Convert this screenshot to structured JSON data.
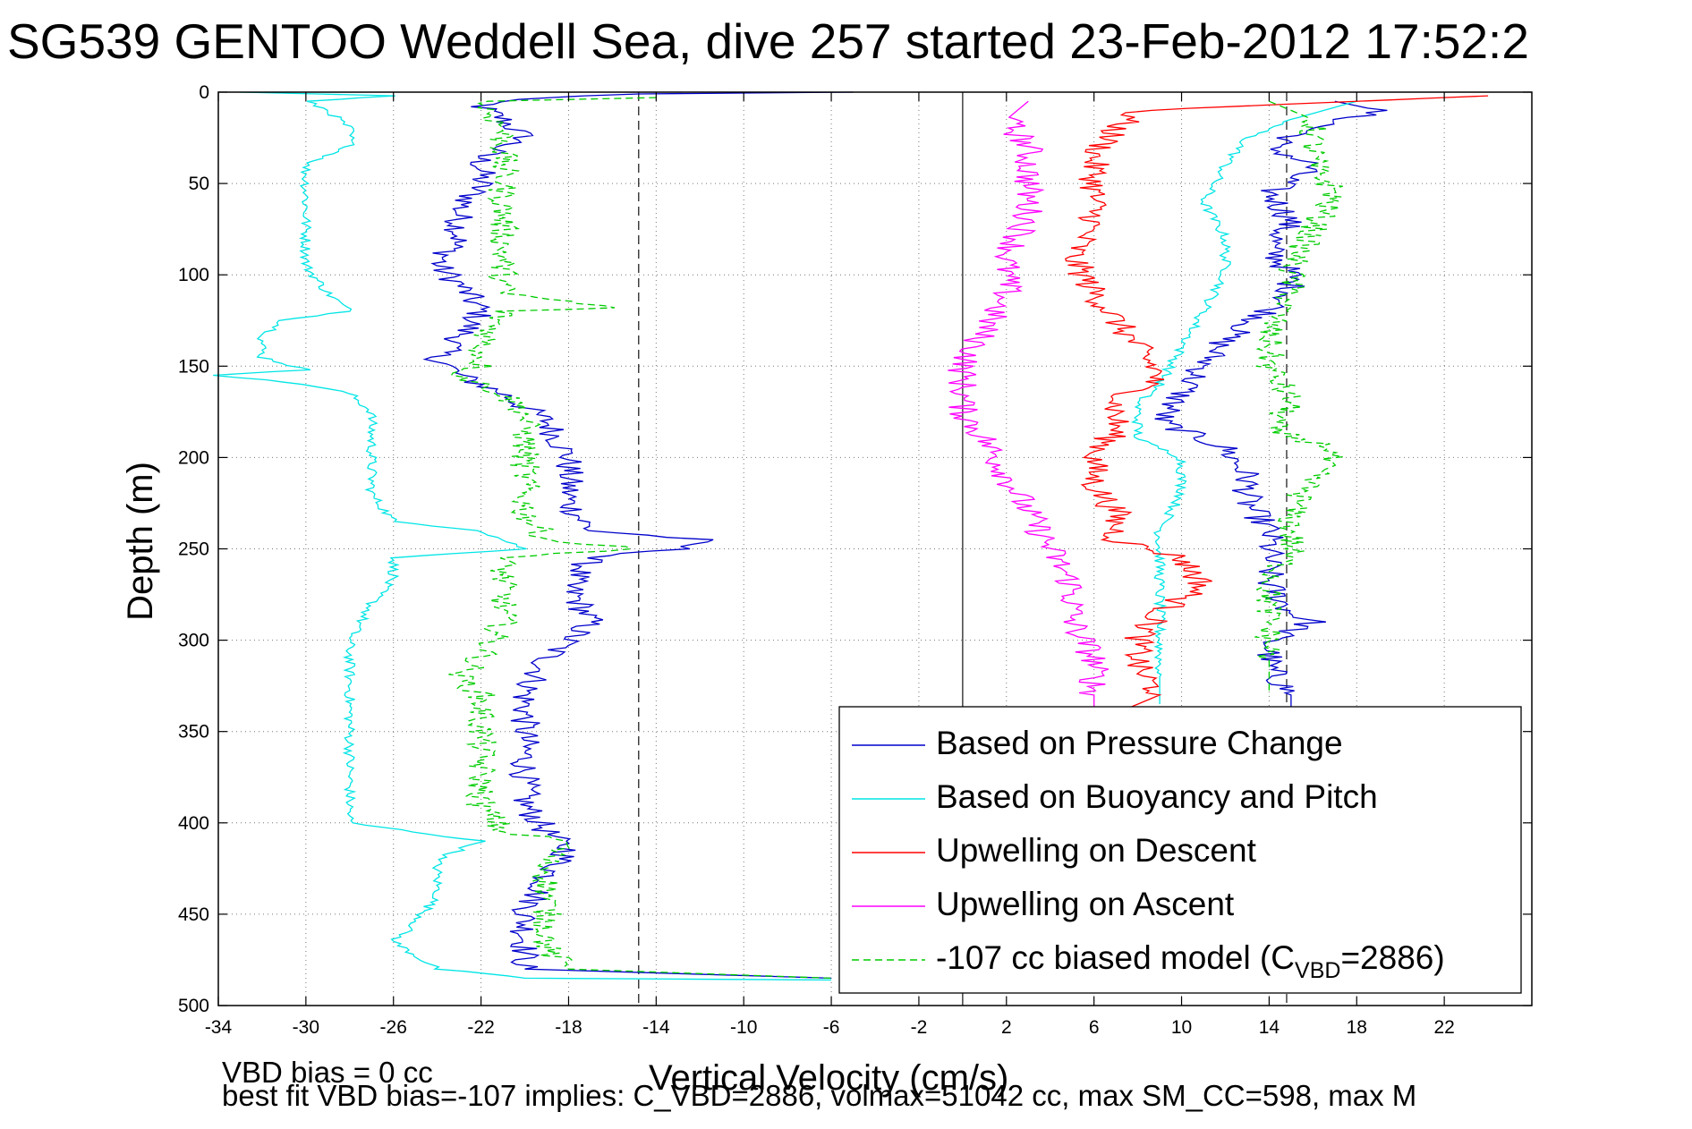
{
  "title": "SG539 GENTOO Weddell Sea, dive 257 started 23-Feb-2012 17:52:2",
  "footer": {
    "line1": "VBD bias = 0 cc",
    "line2": "best fit VBD bias=-107 implies: C_VBD=2886, volmax=51042 cc, max SM_CC=598, max M"
  },
  "chart_data": {
    "type": "line",
    "title": "SG539 GENTOO Weddell Sea, dive 257 started 23-Feb-2012 17:52:2",
    "xlabel": "Vertical Velocity (cm/s)",
    "ylabel": "Depth (m)",
    "xlim": [
      -34,
      26
    ],
    "ylim": [
      500,
      0
    ],
    "y_reversed": true,
    "grid": true,
    "grid_style": "dotted",
    "xticks": [
      -34,
      -30,
      -26,
      -22,
      -18,
      -14,
      -10,
      -6,
      -2,
      2,
      6,
      10,
      14,
      18,
      22
    ],
    "yticks": [
      0,
      50,
      100,
      150,
      200,
      250,
      300,
      350,
      400,
      450,
      500
    ],
    "vertical_lines": [
      {
        "x": -14.8,
        "style": "dashed"
      },
      {
        "x": 0,
        "style": "solid"
      },
      {
        "x": 14.8,
        "style": "dashed"
      }
    ],
    "legend": {
      "position": "bottom-right",
      "entries": [
        {
          "label": "Based on Pressure Change",
          "color": "#0000cc",
          "style": "solid"
        },
        {
          "label": "Based on Buoyancy and Pitch",
          "color": "#00e5e5",
          "style": "solid"
        },
        {
          "label": "Upwelling on Descent",
          "color": "#ff0000",
          "style": "solid"
        },
        {
          "label": "Upwelling on Ascent",
          "color": "#ff00ff",
          "style": "solid"
        },
        {
          "label_main": "-107 cc biased model (C",
          "label_sub": "VBD",
          "label_tail": "=2886)",
          "color": "#00cc00",
          "style": "dashed"
        }
      ]
    },
    "series": [
      {
        "name": "Based on Pressure Change",
        "color": "#0000cc",
        "dash": "",
        "y": [
          0,
          1,
          4,
          8,
          15,
          25,
          35,
          50,
          65,
          80,
          95,
          105,
          120,
          135,
          145,
          155,
          165,
          180,
          200,
          225,
          240,
          245,
          250,
          255,
          270,
          290,
          310,
          330,
          350,
          370,
          390,
          405,
          415,
          430,
          450,
          470,
          480,
          485
        ],
        "x": [
          -5,
          -15,
          -21,
          -22,
          -21,
          -20,
          -22,
          -22,
          -23,
          -23,
          -24,
          -23,
          -22,
          -23,
          -24,
          -23,
          -21,
          -19,
          -18,
          -18,
          -17,
          -12,
          -13,
          -17,
          -18,
          -17,
          -19,
          -20,
          -20,
          -20,
          -20,
          -19,
          -18,
          -19,
          -20,
          -20,
          -20,
          -6
        ]
      },
      {
        "name": "",
        "color": "#0000cc",
        "dash": "",
        "y": [
          5,
          10,
          20,
          30,
          40,
          55,
          70,
          85,
          100,
          110,
          120,
          135,
          150,
          165,
          180,
          195,
          210,
          225,
          240,
          250,
          260,
          270,
          285,
          290,
          300,
          315,
          330,
          340
        ],
        "x": [
          17,
          19,
          16,
          14,
          16,
          14,
          15,
          14,
          15,
          15,
          14,
          12,
          11,
          10,
          9,
          12,
          13,
          13,
          14,
          14,
          14,
          14,
          15,
          16,
          14,
          14,
          15,
          15
        ]
      },
      {
        "name": "Based on Buoyancy and Pitch",
        "color": "#00e5e5",
        "dash": "",
        "y": [
          0,
          2,
          5,
          10,
          20,
          30,
          40,
          50,
          60,
          80,
          95,
          110,
          120,
          125,
          135,
          145,
          152,
          155,
          160,
          165,
          175,
          185,
          200,
          220,
          235,
          240,
          245,
          250,
          255,
          265,
          280,
          300,
          320,
          330,
          350,
          370,
          390,
          400,
          405,
          410,
          420,
          440,
          455,
          465,
          480,
          485,
          486
        ],
        "x": [
          -33,
          -26,
          -30,
          -29,
          -28,
          -28,
          -30,
          -30,
          -30,
          -30,
          -30,
          -29,
          -28,
          -31,
          -32,
          -32,
          -30,
          -34,
          -30,
          -28,
          -27,
          -27,
          -27,
          -27,
          -26,
          -22,
          -21,
          -20,
          -26,
          -26,
          -27,
          -28,
          -28,
          -28,
          -28,
          -28,
          -28,
          -28,
          -25,
          -22,
          -24,
          -24,
          -25,
          -26,
          -24,
          -20,
          -6
        ]
      },
      {
        "name": "",
        "color": "#00e5e5",
        "dash": "",
        "y": [
          5,
          15,
          25,
          40,
          60,
          80,
          100,
          120,
          140,
          160,
          170,
          190,
          200,
          220,
          240,
          260,
          280,
          300,
          320,
          335
        ],
        "x": [
          18,
          15,
          13,
          12,
          11,
          12,
          12,
          11,
          10,
          9,
          8,
          8,
          10,
          10,
          9,
          9,
          9,
          9,
          9,
          9
        ]
      },
      {
        "name": "Upwelling on Descent",
        "color": "#ff0000",
        "dash": "",
        "y": [
          2,
          10,
          20,
          35,
          50,
          70,
          90,
          110,
          125,
          140,
          155,
          170,
          185,
          200,
          215,
          230,
          245,
          255,
          270,
          285,
          300,
          315,
          330,
          340
        ],
        "x": [
          24,
          8,
          7,
          6,
          6,
          6,
          5,
          6,
          7,
          8,
          9,
          7,
          7,
          6,
          6,
          7,
          7,
          10,
          11,
          9,
          8,
          8,
          9,
          7
        ]
      },
      {
        "name": "Upwelling on Ascent",
        "color": "#ff00ff",
        "dash": "",
        "y": [
          5,
          15,
          30,
          50,
          70,
          90,
          110,
          130,
          150,
          165,
          175,
          190,
          210,
          230,
          250,
          270,
          290,
          310,
          330,
          340
        ],
        "x": [
          3,
          2,
          3,
          3,
          3,
          2,
          2,
          1,
          0,
          0,
          0,
          1,
          2,
          3,
          4,
          5,
          5,
          6,
          6,
          6
        ]
      },
      {
        "name": "-107 cc biased model (CVBD=2886)",
        "color": "#00cc00",
        "dash": "8,5",
        "y": [
          3,
          5,
          20,
          35,
          50,
          70,
          90,
          110,
          118,
          120,
          140,
          150,
          155,
          165,
          175,
          190,
          210,
          230,
          245,
          250,
          255,
          270,
          290,
          310,
          320,
          330,
          350,
          370,
          390,
          405,
          410,
          420,
          440,
          450,
          470,
          480,
          485
        ],
        "x": [
          -14,
          -22,
          -21,
          -21,
          -21,
          -21,
          -21,
          -21,
          -16,
          -21,
          -22,
          -22,
          -23,
          -21,
          -20,
          -20,
          -20,
          -20,
          -19,
          -15,
          -21,
          -21,
          -21,
          -22,
          -23,
          -22,
          -22,
          -22,
          -22,
          -21,
          -18,
          -19,
          -19,
          -19,
          -19,
          -18,
          -6
        ]
      },
      {
        "name": "",
        "color": "#00cc00",
        "dash": "8,5",
        "y": [
          5,
          15,
          25,
          40,
          55,
          75,
          95,
          110,
          130,
          150,
          170,
          185,
          195,
          210,
          230,
          250,
          270,
          290,
          310,
          330
        ],
        "x": [
          14,
          16,
          16,
          16,
          17,
          16,
          15,
          15,
          14,
          14,
          15,
          14,
          17,
          16,
          15,
          15,
          14,
          14,
          14,
          14
        ]
      }
    ]
  }
}
